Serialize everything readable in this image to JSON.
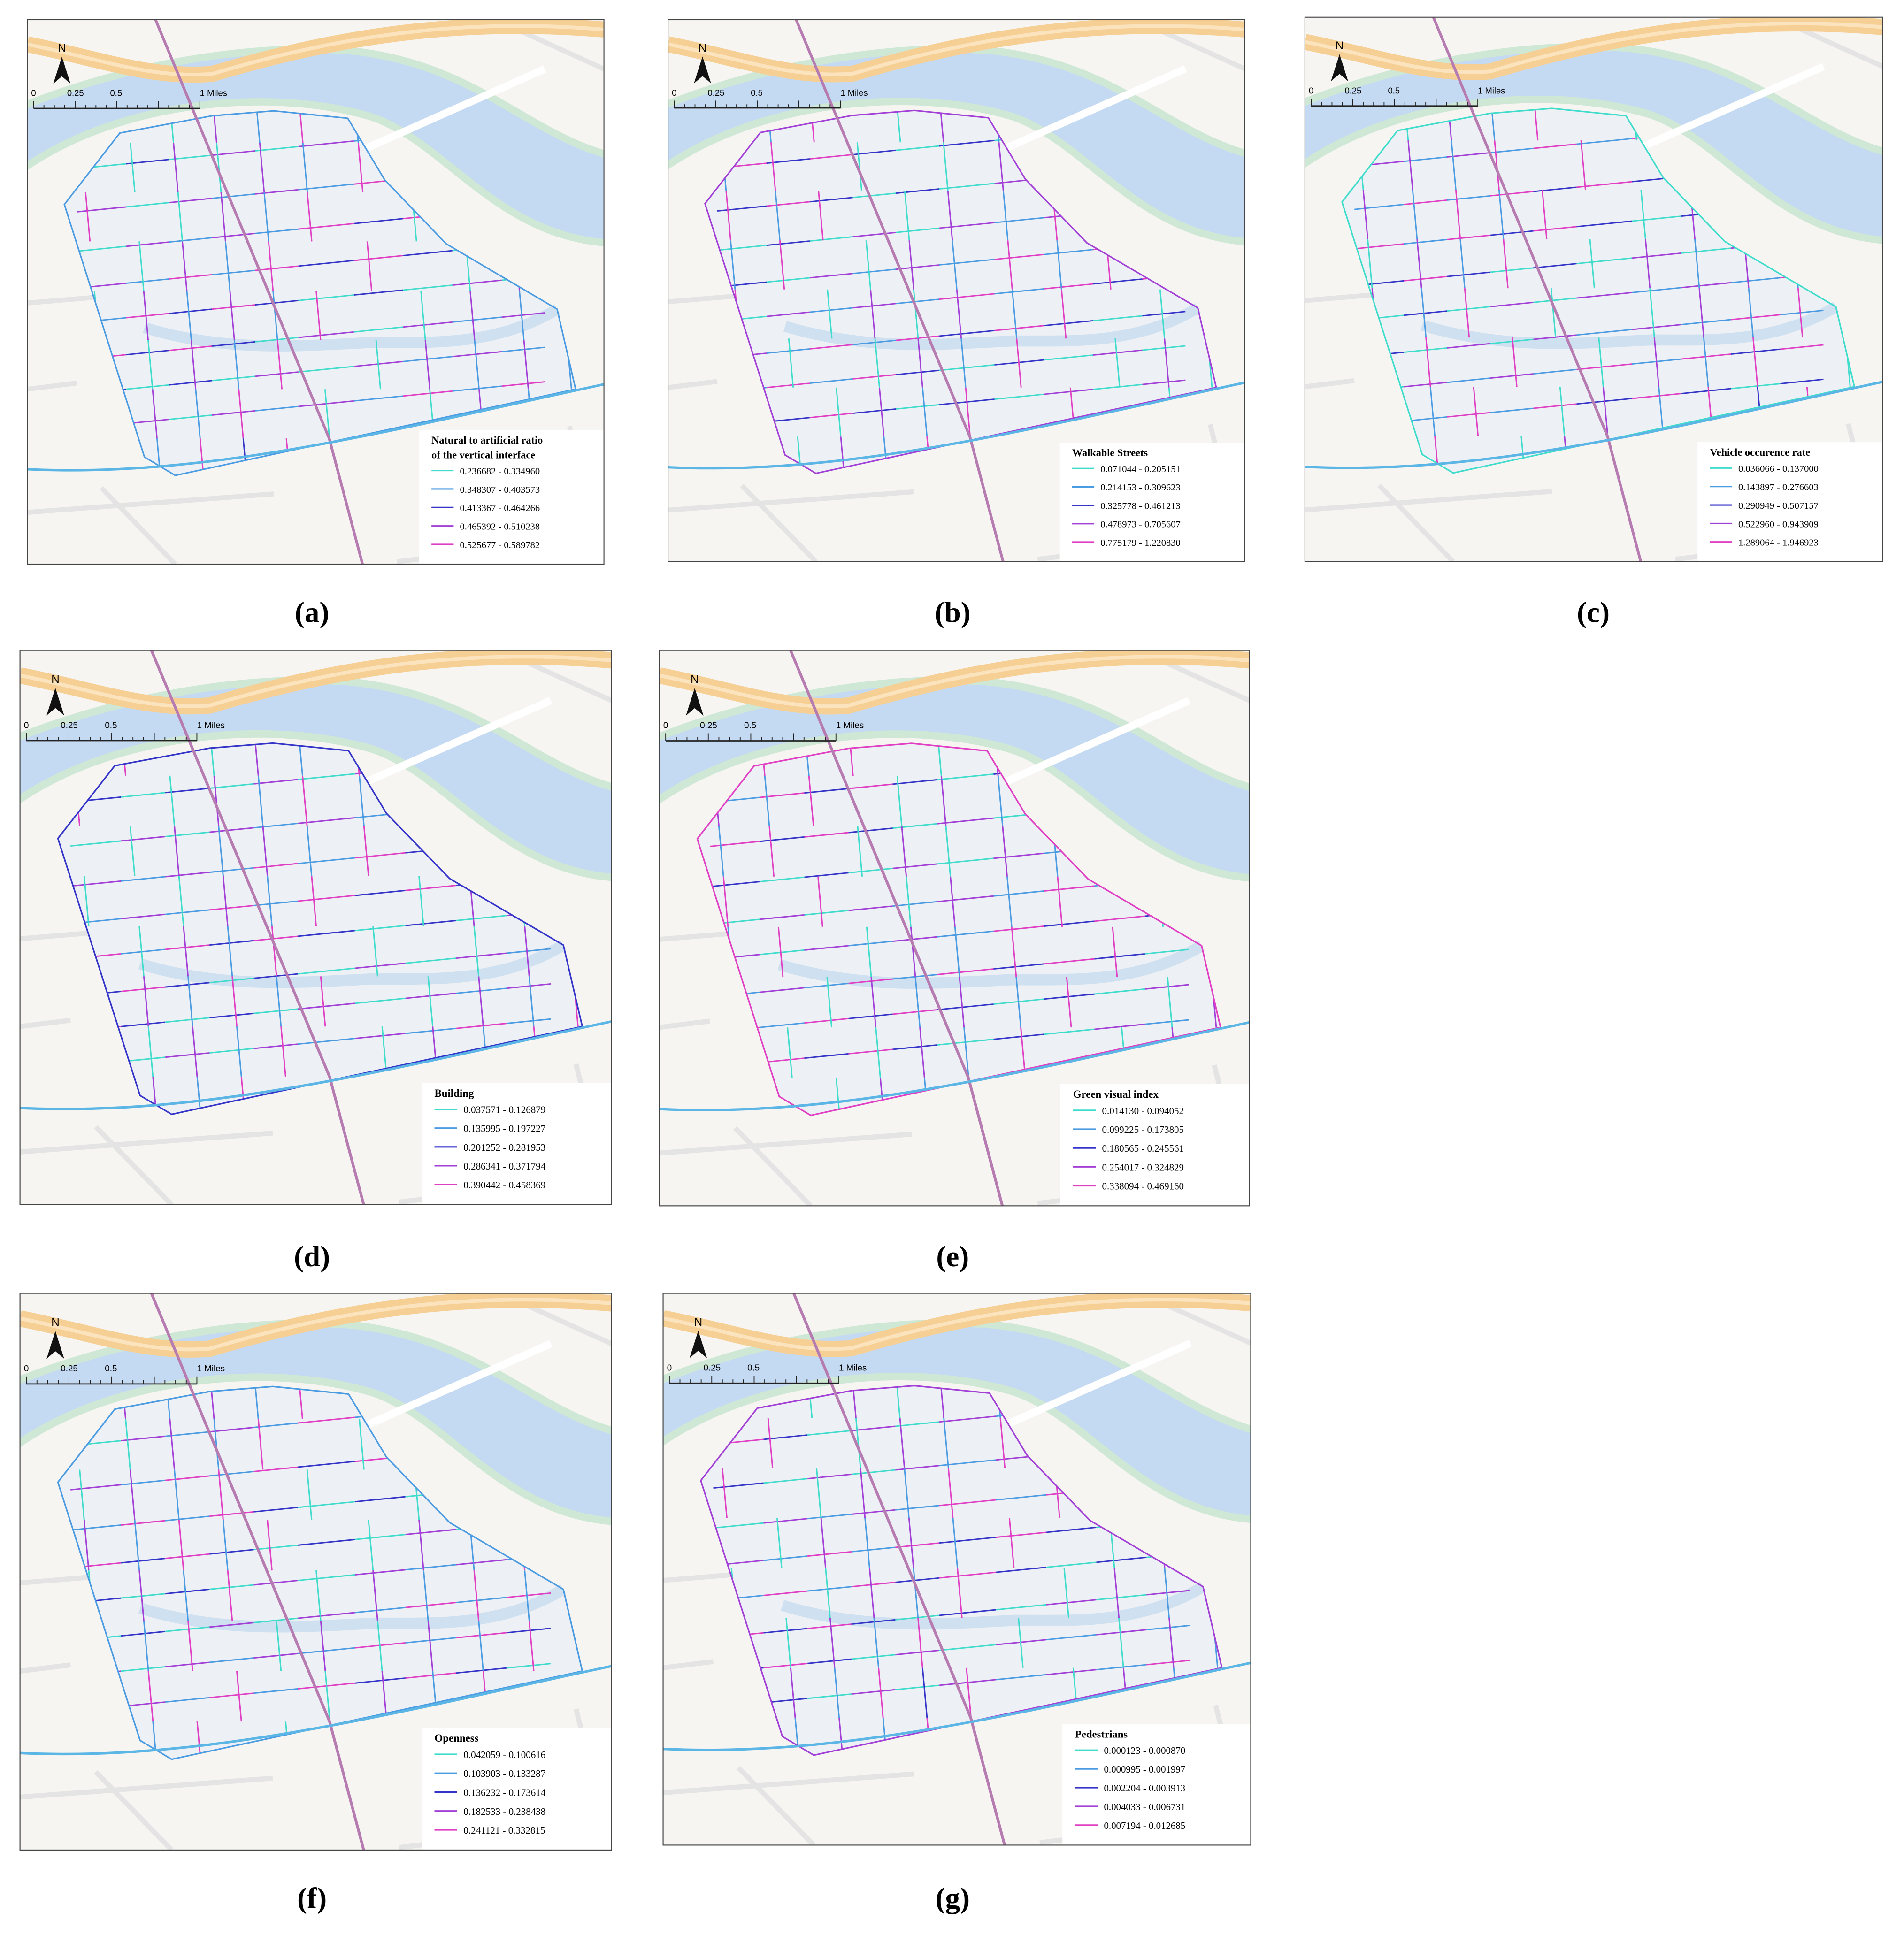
{
  "scale_bar": {
    "north": "N",
    "labels": [
      "0",
      "0.25",
      "0.5",
      "1 Miles"
    ]
  },
  "panels": [
    {
      "label": "(a)",
      "legend": {
        "title": [
          "Natural to artificial ratio",
          "of the vertical interface"
        ],
        "items": [
          "0.236682 - 0.334960",
          "0.348307 - 0.403573",
          "0.413367 - 0.464266",
          "0.465392 - 0.510238",
          "0.525677 - 0.589782"
        ]
      }
    },
    {
      "label": "(b)",
      "legend": {
        "title": [
          "Walkable Streets"
        ],
        "items": [
          "0.071044 - 0.205151",
          "0.214153 - 0.309623",
          "0.325778 - 0.461213",
          "0.478973 - 0.705607",
          "0.775179 - 1.220830"
        ]
      }
    },
    {
      "label": "(c)",
      "legend": {
        "title": [
          "Vehicle occurence rate"
        ],
        "items": [
          "0.036066 - 0.137000",
          "0.143897 - 0.276603",
          "0.290949 - 0.507157",
          "0.522960 - 0.943909",
          "1.289064 - 1.946923"
        ]
      }
    },
    {
      "label": "(d)",
      "legend": {
        "title": [
          "Building"
        ],
        "items": [
          "0.037571 - 0.126879",
          "0.135995 - 0.197227",
          "0.201252 - 0.281953",
          "0.286341 - 0.371794",
          "0.390442 - 0.458369"
        ]
      }
    },
    {
      "label": "(e)",
      "legend": {
        "title": [
          "Green visual index"
        ],
        "items": [
          "0.014130 - 0.094052",
          "0.099225 - 0.173805",
          "0.180565 - 0.245561",
          "0.254017 - 0.324829",
          "0.338094 - 0.469160"
        ]
      }
    },
    {
      "label": "(f)",
      "legend": {
        "title": [
          "Openness"
        ],
        "items": [
          "0.042059 - 0.100616",
          "0.103903 - 0.133287",
          "0.136232 - 0.173614",
          "0.182533 - 0.238438",
          "0.241121 - 0.332815"
        ]
      }
    },
    {
      "label": "(g)",
      "legend": {
        "title": [
          "Pedestrians"
        ],
        "items": [
          "0.000123 - 0.000870",
          "0.000995 - 0.001997",
          "0.002204 - 0.003913",
          "0.004033 - 0.006731",
          "0.007194 - 0.012685"
        ]
      }
    }
  ]
}
